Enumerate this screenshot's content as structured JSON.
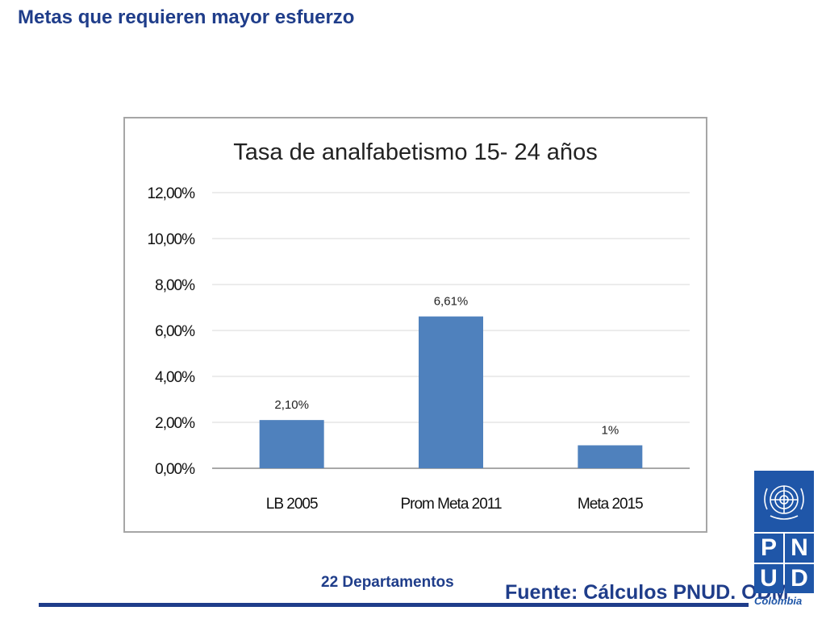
{
  "slide": {
    "title": "Metas que requieren mayor esfuerzo",
    "footer_note": "22 Departamentos",
    "source": "Fuente: Cálculos PNUD. ODM",
    "logo": {
      "letters": [
        "P",
        "N",
        "U",
        "D"
      ],
      "caption": "Colombia",
      "brand_color": "#1f56a8",
      "emblem_icon": "un-emblem-icon"
    }
  },
  "chart_data": {
    "type": "bar",
    "title": "Tasa de analfabetismo  15- 24 años",
    "categories": [
      "LB 2005",
      "Prom Meta 2011",
      "Meta 2015"
    ],
    "values": [
      2.1,
      6.61,
      1.0
    ],
    "data_labels": [
      "2,10%",
      "6,61%",
      "1%"
    ],
    "ylim": [
      0,
      12
    ],
    "y_ticks": [
      0,
      2,
      4,
      6,
      8,
      10,
      12
    ],
    "y_tick_labels": [
      "0,00%",
      "2,00%",
      "4,00%",
      "6,00%",
      "8,00%",
      "10,00%",
      "12,00%"
    ],
    "xlabel": "",
    "ylabel": "",
    "grid": true,
    "legend": "none",
    "bar_color": "#4f81bd"
  }
}
